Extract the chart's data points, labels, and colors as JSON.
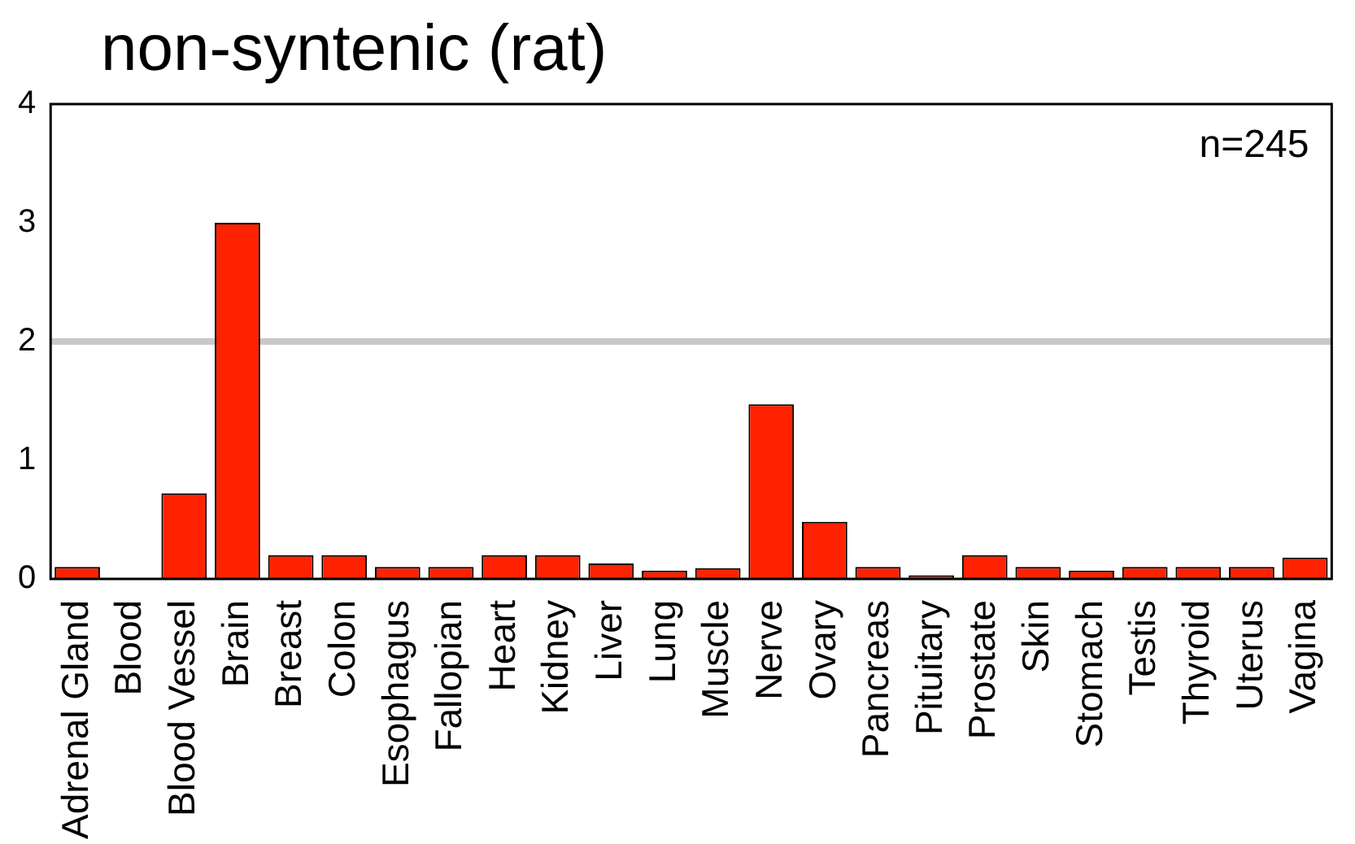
{
  "chart_data": {
    "type": "bar",
    "title": "non-syntenic (rat)",
    "categories": [
      "Adrenal Gland",
      "Blood",
      "Blood Vessel",
      "Brain",
      "Breast",
      "Colon",
      "Esophagus",
      "Fallopian",
      "Heart",
      "Kidney",
      "Liver",
      "Lung",
      "Muscle",
      "Nerve",
      "Ovary",
      "Pancreas",
      "Pituitary",
      "Prostate",
      "Skin",
      "Stomach",
      "Testis",
      "Thyroid",
      "Uterus",
      "Vagina"
    ],
    "values": [
      0.1,
      0,
      0.72,
      3,
      0.2,
      0.2,
      0.1,
      0.1,
      0.2,
      0.2,
      0.13,
      0.07,
      0.09,
      1.47,
      0.48,
      0.1,
      0.03,
      0.2,
      0.1,
      0.07,
      0.1,
      0.1,
      0.1,
      0.18
    ],
    "color": "#ff2200",
    "ylim": [
      0,
      4
    ],
    "yticks": [
      0,
      1,
      2,
      3,
      4
    ],
    "grid": false,
    "legend": false,
    "ref_lines": [
      {
        "axis": "y",
        "value": 2,
        "color": "#c8c8c8"
      }
    ],
    "annotations": [
      "n=245"
    ]
  }
}
